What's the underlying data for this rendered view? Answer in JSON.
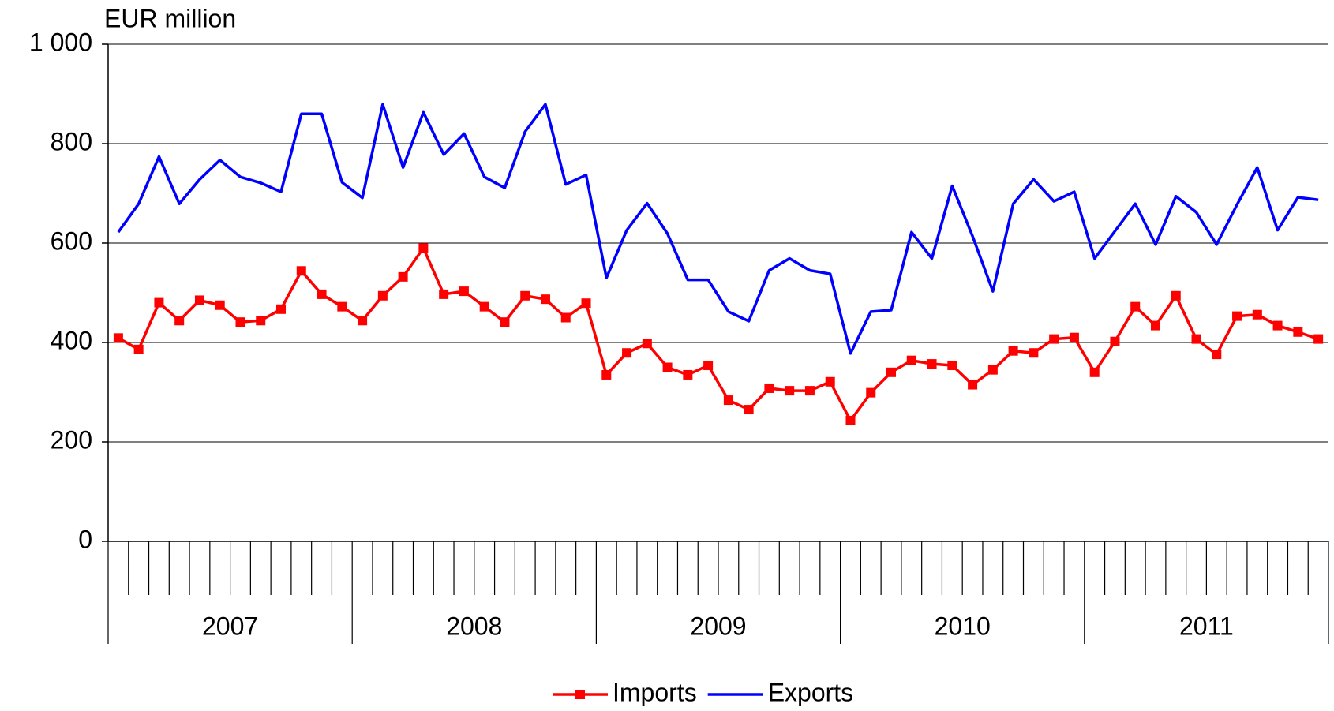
{
  "chart_data": {
    "type": "line",
    "y_label": "EUR million",
    "categories": [
      null,
      null,
      null,
      null,
      null,
      null,
      null,
      null,
      null,
      null,
      null,
      null,
      null,
      null,
      null,
      null,
      null,
      null,
      null,
      null,
      null,
      null,
      null,
      null,
      null,
      null,
      null,
      null,
      null,
      null,
      null,
      null,
      null,
      null,
      null,
      null,
      null,
      null,
      null,
      null,
      null,
      null,
      null,
      null,
      null,
      null,
      null,
      null,
      null,
      null,
      null,
      null,
      null,
      null,
      null,
      null,
      null,
      null,
      null,
      null
    ],
    "year_groups": [
      "2007",
      "2008",
      "2009",
      "2010",
      "2011"
    ],
    "ylim": [
      0,
      1000
    ],
    "yticks": [
      0,
      200,
      400,
      600,
      800,
      {
        "value": 1000,
        "label": "1 000"
      }
    ],
    "grid": true,
    "legend": "bottom",
    "series": [
      {
        "name": "Imports",
        "color": "#ff0000",
        "marker": "square",
        "values": [
          409,
          386,
          480,
          444,
          485,
          475,
          441,
          444,
          467,
          544,
          497,
          472,
          444,
          494,
          532,
          590,
          497,
          503,
          472,
          441,
          494,
          487,
          450,
          479,
          335,
          379,
          398,
          350,
          335,
          354,
          284,
          265,
          308,
          303,
          303,
          321,
          243,
          299,
          340,
          364,
          357,
          354,
          315,
          345,
          383,
          379,
          407,
          410,
          340,
          402,
          472,
          434,
          494,
          407,
          376,
          453,
          456,
          434,
          421,
          407
        ]
      },
      {
        "name": "Exports",
        "color": "#0000ff",
        "values": [
          622,
          679,
          774,
          679,
          728,
          767,
          733,
          721,
          703,
          860,
          860,
          722,
          691,
          879,
          752,
          863,
          778,
          820,
          733,
          711,
          824,
          879,
          718,
          737,
          530,
          626,
          680,
          619,
          526,
          526,
          462,
          443,
          545,
          569,
          545,
          538,
          378,
          462,
          465,
          622,
          569,
          715,
          614,
          503,
          679,
          728,
          684,
          703,
          569,
          624,
          679,
          597,
          694,
          662,
          597,
          677,
          752,
          626,
          692,
          687
        ]
      }
    ]
  }
}
